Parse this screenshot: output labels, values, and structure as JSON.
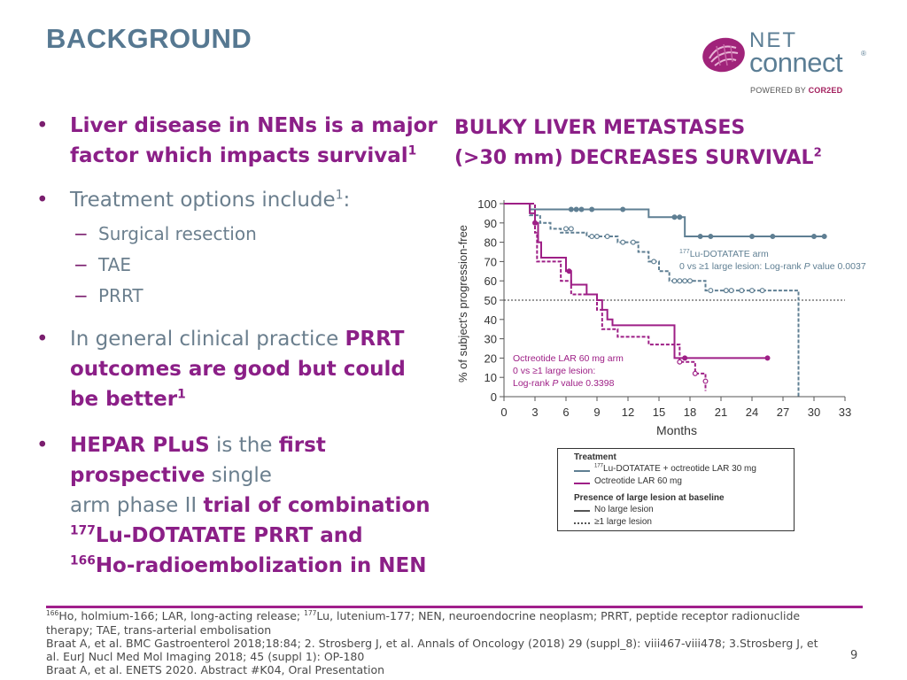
{
  "slide": {
    "title": "BACKGROUND",
    "page_number": "9"
  },
  "logo": {
    "line1": "NET",
    "line2": "connect",
    "registered": "®",
    "powered_prefix": "POWERED BY ",
    "powered_brand": "COR2ED"
  },
  "bullets": {
    "b1_line1": "Liver disease in NENs is a major",
    "b1_line2": "factor which impacts survival",
    "b1_sup": "1",
    "b2_text": "Treatment options include",
    "b2_sup": "1",
    "b2_colon": ":",
    "b2_subitems": [
      "Surgical resection",
      "TAE",
      "PRRT"
    ],
    "b3_line1_plain": "In general clinical practice ",
    "b3_line1_bold": "PRRT",
    "b3_line2": "outcomes are good but could",
    "b3_line3": "be better",
    "b3_sup": "1",
    "b4_l1_bold": "HEPAR PLuS",
    "b4_l1_plain": " is the ",
    "b4_l1_bold2": "first",
    "b4_l2_bold": "prospective",
    "b4_l2_plain": " single",
    "b4_l3_plain": "arm phase II ",
    "b4_l3_bold": "trial of combination",
    "b4_l4_sup": "177",
    "b4_l4_bold": "Lu-DOTATATE PRRT and",
    "b4_l5_sup": "166",
    "b4_l5_bold": "Ho-radioembolization in NEN"
  },
  "chart_heading": {
    "line1": "BULKY LIVER METASTASES",
    "line2": "(>30 mm) DECREASES SURVIVAL",
    "sup": "2"
  },
  "chart_data": {
    "type": "line",
    "xlabel": "Months",
    "ylabel": "% of subject's progression-free",
    "xlim": [
      0,
      33
    ],
    "ylim": [
      0,
      100
    ],
    "x_ticks": [
      0,
      3,
      6,
      9,
      12,
      15,
      18,
      21,
      24,
      27,
      30,
      33
    ],
    "y_ticks": [
      0,
      10,
      20,
      30,
      40,
      50,
      60,
      70,
      80,
      90,
      100
    ],
    "reference_line_y": 50,
    "colors": {
      "lu": "#5f7f93",
      "oct": "#9e1f86"
    },
    "series": [
      {
        "group": "lu",
        "dash": false,
        "points": [
          "0,100",
          "2.5,100",
          "2.5,97",
          "14,97",
          "14,93",
          "17.5,93",
          "17.5,83",
          "31,83"
        ],
        "censor": [
          "6.5,97",
          "7,97",
          "7.5,97",
          "8.5,97",
          "11.5,97",
          "16.5,93",
          "17,93",
          "19,83",
          "20,83",
          "24,83",
          "26,83",
          "30,83",
          "31,83"
        ]
      },
      {
        "group": "lu",
        "dash": true,
        "points": [
          "0,100",
          "2.5,100",
          "2.5,94",
          "3.5,94",
          "3.5,90",
          "4.5,90",
          "4.5,87",
          "5.5,87",
          "5.5,85",
          "8,85",
          "8,83",
          "11,83",
          "11,80",
          "13,80",
          "13,75",
          "14,75",
          "14,70",
          "15,70",
          "15,65",
          "16,65",
          "16,60",
          "19.5,60",
          "19.5,55",
          "28.5,55",
          "28.5,0"
        ],
        "censor": [
          "6,87",
          "6.5,87",
          "8.5,83",
          "9,83",
          "10,83",
          "11.5,80",
          "12.5,80",
          "14.5,70",
          "16.5,60",
          "17,60",
          "17.5,60",
          "18,60",
          "20,55",
          "21.5,55",
          "22,55",
          "23,55",
          "24,55",
          "25,55"
        ]
      },
      {
        "group": "oct",
        "dash": false,
        "points": [
          "0,100",
          "2.5,100",
          "2.5,95",
          "3,95",
          "3,90",
          "3.3,90",
          "3.3,80",
          "3.6,80",
          "3.6,72",
          "6,72",
          "6,65",
          "6.5,65",
          "6.5,58",
          "8,58",
          "8,53",
          "9,53",
          "9,50",
          "9.5,50",
          "9.5,45",
          "10,45",
          "10,40",
          "10.5,40",
          "10.5,37",
          "16.5,37",
          "16.5,20",
          "25.5,20"
        ],
        "censor": [
          "3,90",
          "6.3,65",
          "17.5,20",
          "25.5,20"
        ]
      },
      {
        "group": "oct",
        "dash": true,
        "points": [
          "0,100",
          "3,100",
          "3,85",
          "3.2,85",
          "3.2,70",
          "5.5,70",
          "5.5,60",
          "6.5,60",
          "6.5,53",
          "9,53",
          "9,45",
          "9.5,45",
          "9.5,35",
          "11,35",
          "11,31",
          "14,31",
          "14,27",
          "17,27",
          "17,18",
          "18.5,18",
          "18.5,12",
          "19.5,12",
          "19.5,3"
        ],
        "censor": [
          "17,18",
          "18.5,12",
          "19.5,8"
        ]
      }
    ],
    "annotations": {
      "lu_sup": "177",
      "lu_line1": "Lu-DOTATATE arm",
      "lu_line2": "0 vs ≥1 large lesion: Log-rank ",
      "lu_line2_p": "P",
      "lu_line2_value": " value 0.0037",
      "oct_line1": "Octreotide LAR 60 mg arm",
      "oct_line2": "0 vs ≥1 large lesion:",
      "oct_line3": "Log-rank ",
      "oct_line3_p": "P",
      "oct_line3_value": " value 0.3398"
    },
    "legend": {
      "heading1": "Treatment",
      "item1_sup": "177",
      "item1": "Lu-DOTATATE + octreotide LAR 30 mg",
      "item2": "Octreotide LAR 60 mg",
      "heading2": "Presence of large lesion at baseline",
      "item3": "No large lesion",
      "item4": "≥1 large lesion"
    }
  },
  "footer": {
    "line1_sup1": "166",
    "line1_a": "Ho, holmium-166; LAR, long-acting release; ",
    "line1_sup2": "177",
    "line1_b": "Lu, lutenium-177; NEN, neuroendocrine neoplasm; PRRT, peptide receptor radionuclide",
    "line2": "therapy; TAE, trans-arterial embolisation",
    "line3": "Braat A, et al. BMC Gastroenterol 2018;18:84; 2. Strosberg J, et al. Annals of Oncology (2018) 29 (suppl_8): viii467-viii478; 3.Strosberg J, et",
    "line4": "al. EurJ Nucl Med Mol Imaging 2018; 45 (suppl 1): OP-180",
    "line5": "Braat A, et al. ENETS 2020. Abstract #K04, Oral Presentation"
  }
}
